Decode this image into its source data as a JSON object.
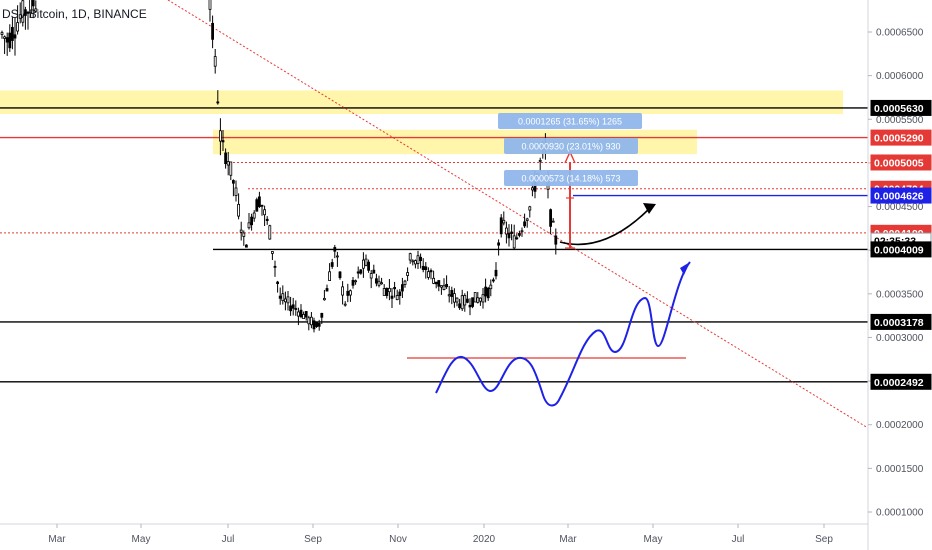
{
  "header": {
    "symbol_text": "DS / Bitcoin, 1D, BINANCE"
  },
  "chart_data": {
    "type": "candlestick",
    "title": "",
    "y_axis": {
      "range": [
        9.2e-05,
        0.00069
      ],
      "tick_labels": [
        "0.0001000",
        "0.0001500",
        "0.0002000",
        "0.0002500",
        "0.0003000",
        "0.0003500",
        "0.0004000",
        "0.0004500",
        "0.0005000",
        "0.0005500",
        "0.0006000",
        "0.0006500"
      ]
    },
    "x_axis": {
      "tick_labels": [
        "Mar",
        "May",
        "Jul",
        "Sep",
        "Nov",
        "2020",
        "Mar",
        "May",
        "Jul",
        "Sep"
      ]
    },
    "price_tags": [
      {
        "label": "0.0005630",
        "value": 0.000563,
        "color": "#000000",
        "text_color": "#ffffff"
      },
      {
        "label": "0.0005290",
        "value": 0.000529,
        "color": "#e53935",
        "text_color": "#ffffff"
      },
      {
        "label": "0.0005005",
        "value": 0.0005005,
        "color": "#e53935",
        "text_color": "#ffffff"
      },
      {
        "label": "0.0004704",
        "value": 0.0004704,
        "color": "#e53935",
        "text_color": "#ffffff"
      },
      {
        "label": "0.0004626",
        "value": 0.0004626,
        "color": "#1e22e6",
        "text_color": "#ffffff"
      },
      {
        "label": "0.0004199",
        "value": 0.0004199,
        "color": "#e53935",
        "text_color": "#ffffff"
      },
      {
        "label": "02:35:33",
        "value": 0.000411,
        "color": "#ffffff",
        "text_color": "#000000"
      },
      {
        "label": "0.0004009",
        "value": 0.0004009,
        "color": "#000000",
        "text_color": "#ffffff"
      },
      {
        "label": "0.0003178",
        "value": 0.0003178,
        "color": "#000000",
        "text_color": "#ffffff"
      },
      {
        "label": "0.0002492",
        "value": 0.0002492,
        "color": "#000000",
        "text_color": "#ffffff"
      }
    ],
    "measure_labels": [
      "0.0001265 (31.65%) 1265",
      "0.0000930 (23.01%) 930",
      "0.0000573 (14.18%) 573"
    ],
    "horizontal_levels": [
      {
        "value": 0.000563,
        "style": "solid",
        "color": "#000000"
      },
      {
        "value": 0.000529,
        "style": "solid",
        "color": "#e53935"
      },
      {
        "value": 0.0005005,
        "style": "dotted",
        "color": "#e53935"
      },
      {
        "value": 0.0004704,
        "style": "dotted",
        "color": "#e53935"
      },
      {
        "value": 0.0004626,
        "style": "solid",
        "color": "#1e22e6"
      },
      {
        "value": 0.0004199,
        "style": "dotted",
        "color": "#e53935"
      },
      {
        "value": 0.0004009,
        "style": "solid",
        "color": "#000000"
      },
      {
        "value": 0.0003178,
        "style": "solid",
        "color": "#000000"
      },
      {
        "value": 0.0002492,
        "style": "solid",
        "color": "#000000"
      }
    ],
    "zones": [
      {
        "from": 0.000556,
        "to": 0.000583,
        "color": "#fff59d"
      },
      {
        "from": 0.00051,
        "to": 0.000538,
        "color": "#fff59d"
      }
    ],
    "colors": {
      "candles": "#000000",
      "trendline": "#e53935",
      "projection": "#1e22e6",
      "arrow": "#000000",
      "measure_box": "#8fb6ea"
    }
  }
}
